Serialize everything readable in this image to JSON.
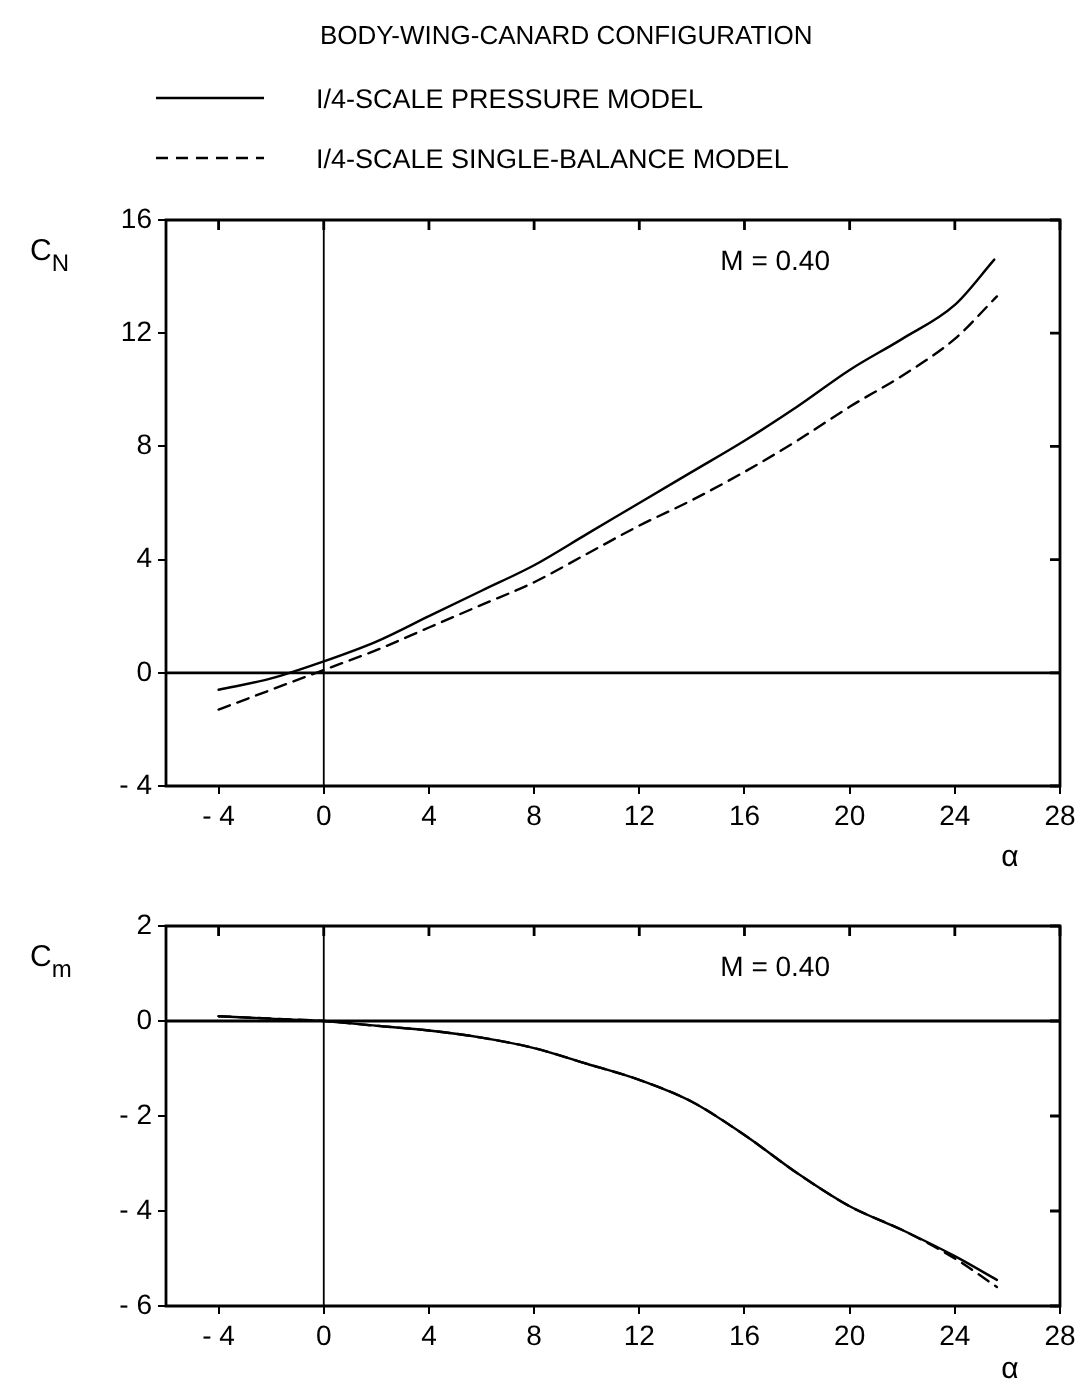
{
  "chart_data": [
    {
      "type": "line",
      "title": "BODY-WING-CANARD CONFIGURATION",
      "xlabel": "α",
      "ylabel": "C$_{N}$",
      "annotations": [
        "M = 0.40"
      ],
      "legend": "top",
      "grid": false,
      "marker": "none",
      "xlim": [
        -6,
        28
      ],
      "xticks": [
        -4,
        0,
        4,
        8,
        12,
        16,
        20,
        24,
        28
      ],
      "ylim": [
        -4,
        16
      ],
      "yticks": [
        -4,
        0,
        4,
        8,
        12,
        16
      ],
      "ref_lines": [
        {
          "axis": "x",
          "value": 0
        },
        {
          "axis": "y",
          "value": 0
        }
      ],
      "series": [
        {
          "name": "I/4-SCALE PRESSURE MODEL",
          "color": "#000000",
          "line_style": "solid",
          "x": [
            -4,
            -2,
            0,
            2,
            4,
            6,
            8,
            10,
            12,
            14,
            16,
            18,
            20,
            22,
            24,
            25.5
          ],
          "values": [
            -0.6,
            -0.2,
            0.4,
            1.1,
            2.0,
            2.9,
            3.8,
            4.9,
            6.0,
            7.1,
            8.2,
            9.4,
            10.7,
            11.8,
            13.0,
            14.6
          ]
        },
        {
          "name": "I/4-SCALE SINGLE-BALANCE MODEL",
          "color": "#000000",
          "line_style": "dashed",
          "x": [
            -4,
            -2,
            0,
            2,
            4,
            6,
            8,
            10,
            12,
            14,
            16,
            18,
            20,
            22,
            24,
            25.6
          ],
          "values": [
            -1.3,
            -0.6,
            0.1,
            0.8,
            1.6,
            2.4,
            3.2,
            4.2,
            5.2,
            6.1,
            7.1,
            8.2,
            9.4,
            10.5,
            11.8,
            13.3
          ]
        }
      ]
    },
    {
      "type": "line",
      "xlabel": "α",
      "ylabel": "C$_{m}$",
      "annotations": [
        "M = 0.40"
      ],
      "grid": false,
      "marker": "none",
      "xlim": [
        -6,
        28
      ],
      "xticks": [
        -4,
        0,
        4,
        8,
        12,
        16,
        20,
        24,
        28
      ],
      "ylim": [
        -6,
        2
      ],
      "yticks": [
        -6,
        -4,
        -2,
        0,
        2
      ],
      "ref_lines": [
        {
          "axis": "x",
          "value": 0
        },
        {
          "axis": "y",
          "value": 0
        }
      ],
      "series": [
        {
          "color": "#000000",
          "line_style": "solid",
          "x": [
            -4,
            -2,
            0,
            2,
            4,
            6,
            8,
            10,
            12,
            14,
            16,
            18,
            20,
            22,
            24,
            25.6
          ],
          "values": [
            0.1,
            0.05,
            0,
            -0.1,
            -0.2,
            -0.35,
            -0.57,
            -0.9,
            -1.24,
            -1.7,
            -2.4,
            -3.2,
            -3.9,
            -4.4,
            -4.95,
            -5.45
          ]
        },
        {
          "color": "#000000",
          "line_style": "dashed",
          "x": [
            -4,
            -2,
            0,
            2,
            4,
            6,
            8,
            10,
            12,
            14,
            16,
            18,
            20,
            22,
            24,
            25.6
          ],
          "values": [
            0.1,
            0.05,
            0,
            -0.1,
            -0.2,
            -0.35,
            -0.57,
            -0.9,
            -1.24,
            -1.7,
            -2.4,
            -3.2,
            -3.9,
            -4.4,
            -5.0,
            -5.6
          ]
        }
      ]
    }
  ]
}
